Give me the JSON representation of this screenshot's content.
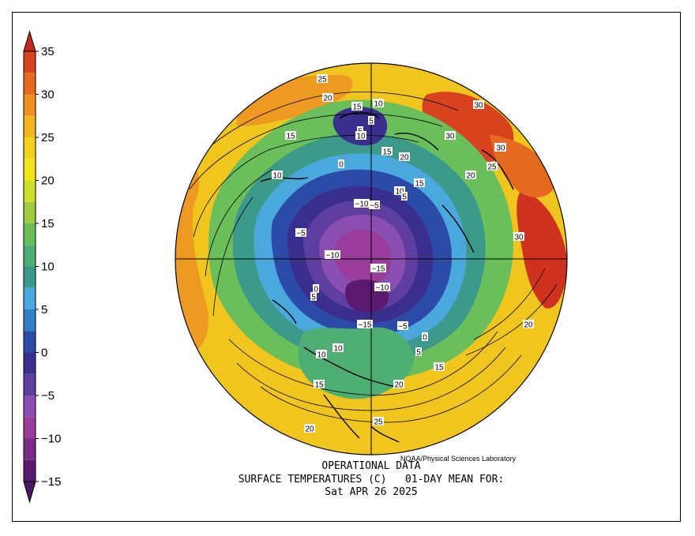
{
  "colorbar": {
    "ticks": [
      "35",
      "30",
      "25",
      "20",
      "15",
      "10",
      "5",
      "0",
      "−5",
      "−10",
      "−15"
    ],
    "tick_values": [
      35,
      30,
      25,
      20,
      15,
      10,
      5,
      0,
      -5,
      -10,
      -15
    ],
    "range": [
      -15,
      35
    ],
    "step": 2.5,
    "colors": [
      "#5a1a6e",
      "#7b2a87",
      "#9a3d9a",
      "#8a4fb0",
      "#5e3fa0",
      "#3b2f8e",
      "#2c4aa8",
      "#2f7fc8",
      "#4aa8dc",
      "#3c9a8a",
      "#4fae74",
      "#6bbf5a",
      "#9dcd3e",
      "#cfe02a",
      "#f0e51c",
      "#f3d21f",
      "#f2b520",
      "#ee8f22",
      "#e56a20",
      "#d8421e",
      "#c92a1f"
    ]
  },
  "map": {
    "contour_labels": [
      {
        "text": "25"
      },
      {
        "text": "20"
      },
      {
        "text": "15"
      },
      {
        "text": "10"
      },
      {
        "text": "15"
      },
      {
        "text": "5"
      },
      {
        "text": "10"
      },
      {
        "text": "5"
      },
      {
        "text": "0"
      },
      {
        "text": "30"
      },
      {
        "text": "30"
      },
      {
        "text": "25"
      },
      {
        "text": "20"
      },
      {
        "text": "30"
      },
      {
        "text": "25"
      },
      {
        "text": "20"
      },
      {
        "text": "15"
      },
      {
        "text": "10"
      },
      {
        "text": "5"
      },
      {
        "text": "15"
      },
      {
        "text": "−10"
      },
      {
        "text": "−5"
      },
      {
        "text": "−5"
      },
      {
        "text": "30"
      },
      {
        "text": "−10"
      },
      {
        "text": "−15"
      },
      {
        "text": "−10"
      },
      {
        "text": "0"
      },
      {
        "text": "5"
      },
      {
        "text": "−15"
      },
      {
        "text": "−5"
      },
      {
        "text": "0"
      },
      {
        "text": "5"
      },
      {
        "text": "10"
      },
      {
        "text": "10"
      },
      {
        "text": "10"
      },
      {
        "text": "15"
      },
      {
        "text": "15"
      },
      {
        "text": "20"
      },
      {
        "text": "20"
      },
      {
        "text": "25"
      },
      {
        "text": "20"
      }
    ]
  },
  "credit": "NOAA/Physical Sciences Laboratory",
  "title": {
    "line1": "OPERATIONAL DATA",
    "line2": "SURFACE TEMPERATURES (C)   01-DAY MEAN FOR:",
    "line3": "Sat APR 26 2025"
  }
}
